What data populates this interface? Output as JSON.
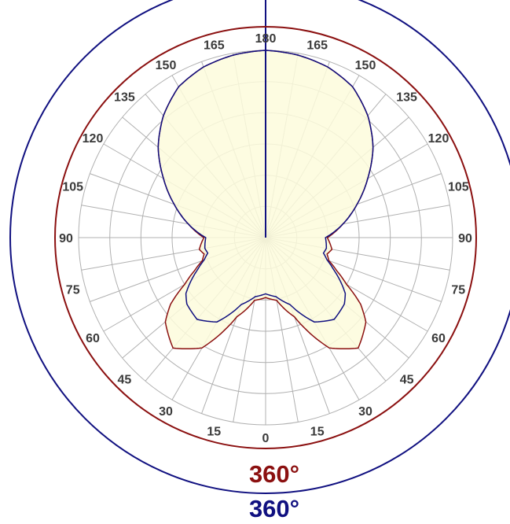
{
  "chart_data": {
    "type": "polar",
    "angle_labels": [
      "0",
      "15",
      "30",
      "45",
      "60",
      "75",
      "90",
      "105",
      "120",
      "135",
      "150",
      "165",
      "180",
      "165",
      "150",
      "135",
      "120",
      "105",
      "90",
      "75",
      "60",
      "45",
      "30",
      "15"
    ],
    "angle_unit": "degrees",
    "radial_rings": 6,
    "grid": true,
    "series": [
      {
        "color": "#8b1010",
        "fill": "#fdfbdc",
        "angles": [
          0,
          10,
          20,
          30,
          40,
          50,
          55,
          60,
          65,
          70,
          75,
          80,
          90,
          100,
          110,
          120,
          130,
          140,
          150,
          160,
          170,
          180
        ],
        "values": [
          0.32,
          0.34,
          0.45,
          0.68,
          0.77,
          0.7,
          0.62,
          0.5,
          0.42,
          0.36,
          0.34,
          0.36,
          0.33,
          0.42,
          0.52,
          0.63,
          0.75,
          0.85,
          0.93,
          0.97,
          0.99,
          1.0
        ]
      },
      {
        "color": "#101080",
        "angles": [
          0,
          10,
          20,
          30,
          40,
          50,
          55,
          60,
          65,
          70,
          75,
          80,
          90,
          100,
          110,
          120,
          130,
          140,
          150,
          160,
          170,
          180
        ],
        "values": [
          0.3,
          0.32,
          0.38,
          0.52,
          0.57,
          0.55,
          0.52,
          0.46,
          0.4,
          0.35,
          0.32,
          0.33,
          0.32,
          0.42,
          0.52,
          0.63,
          0.75,
          0.85,
          0.93,
          0.97,
          0.99,
          1.0
        ]
      }
    ],
    "inner_circle_label": "360°",
    "outer_circle_label": "360°",
    "colors": {
      "inner_circle": "#8b1010",
      "outer_circle": "#101080",
      "grid": "#b0b0b0"
    }
  }
}
